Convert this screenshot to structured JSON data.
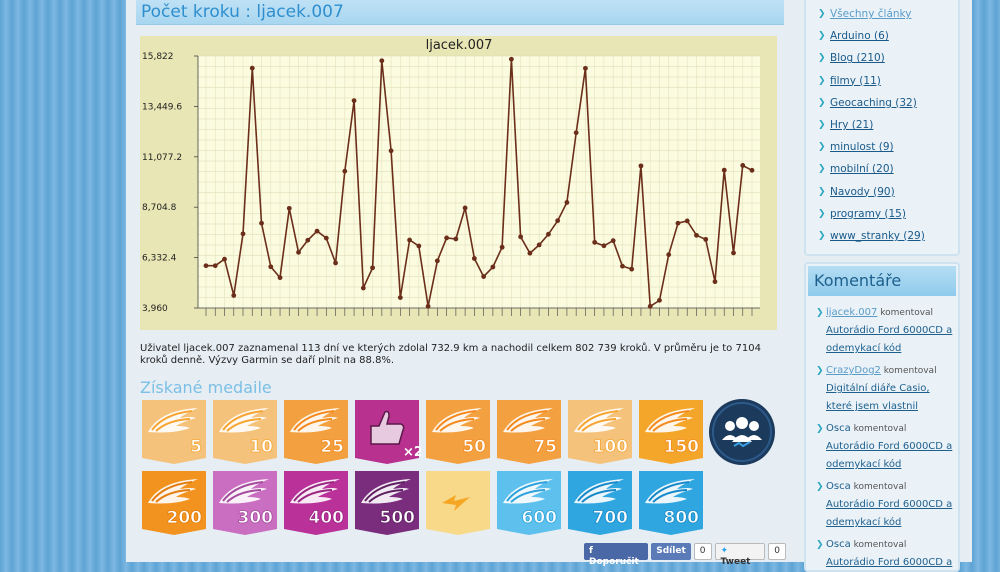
{
  "page": {
    "title": "Počet kroku : ljacek.007"
  },
  "chart_data": {
    "type": "line",
    "title": "ljacek.007",
    "xlabel": "",
    "ylabel": "",
    "ylim": [
      3960,
      15822
    ],
    "yticks": [
      "3,960",
      "6,332.4",
      "8,704.8",
      "11,077.2",
      "13,449.6",
      "15,822"
    ],
    "grid": true,
    "line_color": "#6b2e1a",
    "plot_bg": "#fbfbe0",
    "frame_bg": "#e8e6b4",
    "series": [
      {
        "values": [
          5950,
          5950,
          6260,
          4550,
          7450,
          15250,
          7950,
          5900,
          5390,
          8650,
          6580,
          7150,
          7580,
          7250,
          6080,
          10400,
          13720,
          4900,
          5850,
          15600,
          11360,
          4450,
          7160,
          6880,
          4040,
          6180,
          7260,
          7210,
          8670,
          6290,
          5440,
          5890,
          6820,
          15670,
          7310,
          6540,
          6930,
          7430,
          8070,
          8930,
          12210,
          15240,
          7050,
          6890,
          7130,
          5930,
          5790,
          10650,
          4040,
          4320,
          6470,
          7950,
          8060,
          7380,
          7190,
          5200,
          10450,
          6550,
          10670,
          10440
        ]
      }
    ]
  },
  "summary": "Uživatel ljacek.007 zaznamenal 113 dní ve kterých zdolal 732.9 km a nachodil celkem 802 739 kroků. V průměru je to 7104 kroků denně. Výzvy Garmin se daří plnit na 88.8%.",
  "medals_title": "Získané medaile",
  "medals": [
    {
      "label": "5",
      "color": "#f4c27a",
      "wing": "#f7a532"
    },
    {
      "label": "10",
      "color": "#f4c27a",
      "wing": "#f7a532"
    },
    {
      "label": "25",
      "color": "#f2a040",
      "wing": "#f48a1e"
    },
    {
      "label": "2",
      "color": "#b8318f",
      "wing": "#a0227a",
      "icon": "thumbs-up"
    },
    {
      "label": "50",
      "color": "#f2a040",
      "wing": "#f48a1e"
    },
    {
      "label": "75",
      "color": "#f2a040",
      "wing": "#f48a1e"
    },
    {
      "label": "100",
      "color": "#f4c27a",
      "wing": "#f7a532"
    },
    {
      "label": "150",
      "color": "#f4a62a",
      "wing": "#f48a1e"
    },
    {
      "label": "",
      "color": "#1b3a5c",
      "wing": "#ffffff",
      "icon": "group"
    },
    {
      "label": "200",
      "color": "#f1931e",
      "wing": "#e27d10"
    },
    {
      "label": "300",
      "color": "#c96ec0",
      "wing": "#a54b9e"
    },
    {
      "label": "400",
      "color": "#b93199",
      "wing": "#9a2580"
    },
    {
      "label": "500",
      "color": "#7a2c7d",
      "wing": "#5e1f61"
    },
    {
      "label": "",
      "color": "#f8d98a",
      "wing": "#f5a623",
      "icon": "bolt"
    },
    {
      "label": "600",
      "color": "#5ec0ec",
      "wing": "#2da2dc"
    },
    {
      "label": "700",
      "color": "#2fa6e0",
      "wing": "#1889c8"
    },
    {
      "label": "800",
      "color": "#2fa6e0",
      "wing": "#1889c8"
    }
  ],
  "social": {
    "fb_label": "Doporučit",
    "share_label": "Sdílet",
    "share_count": "0",
    "tweet_label": "Tweet",
    "tweet_count": "0"
  },
  "categories": [
    {
      "label": "Všechny články"
    },
    {
      "label": "Arduino (6)"
    },
    {
      "label": "Blog (210)"
    },
    {
      "label": "filmy (11)"
    },
    {
      "label": "Geocaching (32)"
    },
    {
      "label": "Hry (21)"
    },
    {
      "label": "minulost (9)"
    },
    {
      "label": "mobilní (20)"
    },
    {
      "label": "Navody (90)"
    },
    {
      "label": "programy (15)"
    },
    {
      "label": "www_stranky (29)"
    }
  ],
  "comments_title": "Komentáře",
  "comments": [
    {
      "user": "ljacek.007",
      "verb": "komentoval",
      "article": "Autorádio Ford 6000CD a odemykací kód"
    },
    {
      "user": "CrazyDog2",
      "verb": "komentoval",
      "article": "Digitální diáře Casio, které jsem vlastnil"
    },
    {
      "user": "Osca",
      "verb": "komentoval",
      "article": "Autorádio Ford 6000CD a odemykací kód"
    },
    {
      "user": "Osca",
      "verb": "komentoval",
      "article": "Autorádio Ford 6000CD a odemykací kód"
    },
    {
      "user": "Osca",
      "verb": "komentoval",
      "article": "Autorádio Ford 6000CD a"
    }
  ]
}
